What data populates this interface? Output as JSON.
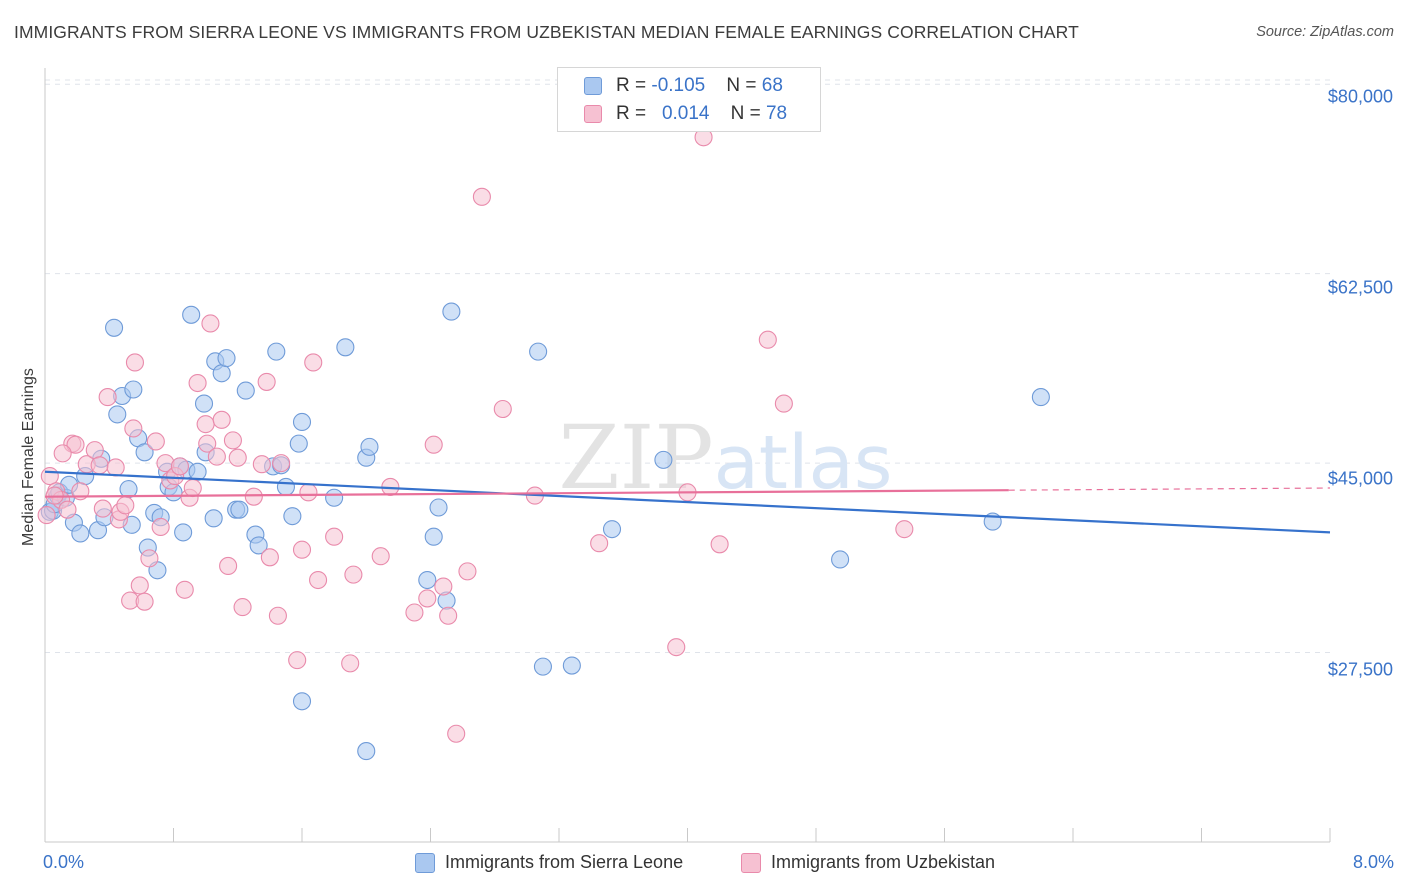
{
  "header": {
    "title": "IMMIGRANTS FROM SIERRA LEONE VS IMMIGRANTS FROM UZBEKISTAN MEDIAN FEMALE EARNINGS CORRELATION CHART",
    "source": "Source: ZipAtlas.com"
  },
  "watermark": {
    "zip": "ZIP",
    "atlas": "atlas"
  },
  "legend_top": {
    "rows": [
      {
        "r_label": "R = ",
        "r_value": "-0.105",
        "n_label": "N = ",
        "n_value": "68"
      },
      {
        "r_label": "R = ",
        "r_value": "0.014",
        "n_label": "N = ",
        "n_value": "78"
      }
    ]
  },
  "colors": {
    "blue_fill": "#aac8f0",
    "blue_stroke": "#6f9bd8",
    "blue_line": "#3672cc",
    "pink_fill": "#f6c1d2",
    "pink_stroke": "#e98aab",
    "pink_line": "#e8709a",
    "axis_text": "#3a73c8",
    "grid": "#dfe3ea"
  },
  "chart_data": {
    "type": "scatter",
    "title": "IMMIGRANTS FROM SIERRA LEONE VS IMMIGRANTS FROM UZBEKISTAN MEDIAN FEMALE EARNINGS CORRELATION CHART",
    "xlabel": "",
    "ylabel": "Median Female Earnings",
    "xlim": [
      0,
      8
    ],
    "ylim": [
      10000,
      81500
    ],
    "x_tick_labels": [
      "0.0%",
      "8.0%"
    ],
    "y_ticks": [
      27500,
      45000,
      62500,
      80000
    ],
    "y_tick_labels": [
      "$27,500",
      "$45,000",
      "$62,500",
      "$80,000"
    ],
    "grid": true,
    "legend_position": "top-center and bottom",
    "series": [
      {
        "name": "Immigrants from Sierra Leone",
        "color": "#aac8f0",
        "r": -0.105,
        "n": 68,
        "trend": {
          "x": [
            0,
            8
          ],
          "y": [
            44200,
            38600
          ]
        },
        "points": [
          [
            0.03,
            40500
          ],
          [
            0.05,
            40600
          ],
          [
            0.06,
            41200
          ],
          [
            0.08,
            42000
          ],
          [
            0.09,
            42300
          ],
          [
            0.13,
            41800
          ],
          [
            0.15,
            43000
          ],
          [
            0.18,
            39500
          ],
          [
            0.22,
            38500
          ],
          [
            0.25,
            43800
          ],
          [
            0.33,
            38800
          ],
          [
            0.35,
            45400
          ],
          [
            0.37,
            40000
          ],
          [
            0.43,
            57500
          ],
          [
            0.45,
            49500
          ],
          [
            0.48,
            51200
          ],
          [
            0.52,
            42600
          ],
          [
            0.54,
            39300
          ],
          [
            0.55,
            51800
          ],
          [
            0.58,
            47300
          ],
          [
            0.62,
            46000
          ],
          [
            0.64,
            37200
          ],
          [
            0.68,
            40400
          ],
          [
            0.7,
            35100
          ],
          [
            0.72,
            40000
          ],
          [
            0.76,
            44200
          ],
          [
            0.77,
            42800
          ],
          [
            0.8,
            42300
          ],
          [
            0.84,
            44700
          ],
          [
            0.86,
            38600
          ],
          [
            0.88,
            44400
          ],
          [
            0.91,
            58700
          ],
          [
            0.95,
            44200
          ],
          [
            0.99,
            50500
          ],
          [
            1.0,
            46000
          ],
          [
            1.05,
            39900
          ],
          [
            1.06,
            54400
          ],
          [
            1.1,
            53300
          ],
          [
            1.13,
            54700
          ],
          [
            1.19,
            40700
          ],
          [
            1.21,
            40700
          ],
          [
            1.25,
            51700
          ],
          [
            1.31,
            38400
          ],
          [
            1.33,
            37400
          ],
          [
            1.42,
            44700
          ],
          [
            1.44,
            55300
          ],
          [
            1.47,
            44800
          ],
          [
            1.5,
            42800
          ],
          [
            1.54,
            40100
          ],
          [
            1.58,
            46800
          ],
          [
            1.6,
            48800
          ],
          [
            1.8,
            41800
          ],
          [
            1.87,
            55700
          ],
          [
            2.0,
            45500
          ],
          [
            2.02,
            46500
          ],
          [
            2.38,
            34200
          ],
          [
            2.42,
            38200
          ],
          [
            2.45,
            40900
          ],
          [
            2.5,
            32300
          ],
          [
            2.53,
            59000
          ],
          [
            3.1,
            26200
          ],
          [
            3.28,
            26300
          ],
          [
            3.07,
            55300
          ],
          [
            3.53,
            38900
          ],
          [
            3.85,
            45300
          ],
          [
            4.95,
            36100
          ],
          [
            5.9,
            39600
          ],
          [
            6.2,
            51100
          ],
          [
            1.6,
            23000
          ],
          [
            2.0,
            18400
          ]
        ]
      },
      {
        "name": "Immigrants from Uzbekistan",
        "color": "#f6c1d2",
        "r": 0.014,
        "n": 78,
        "trend": {
          "x": [
            0,
            6
          ],
          "y": [
            41900,
            42500
          ]
        },
        "points": [
          [
            0.03,
            43800
          ],
          [
            0.07,
            42400
          ],
          [
            0.1,
            41600
          ],
          [
            0.14,
            40700
          ],
          [
            0.17,
            46800
          ],
          [
            0.19,
            46700
          ],
          [
            0.22,
            42400
          ],
          [
            0.26,
            44900
          ],
          [
            0.31,
            46200
          ],
          [
            0.34,
            44800
          ],
          [
            0.36,
            40800
          ],
          [
            0.39,
            51100
          ],
          [
            0.44,
            44600
          ],
          [
            0.46,
            39800
          ],
          [
            0.47,
            40500
          ],
          [
            0.5,
            41100
          ],
          [
            0.53,
            32300
          ],
          [
            0.55,
            48200
          ],
          [
            0.56,
            54300
          ],
          [
            0.59,
            33700
          ],
          [
            0.62,
            32200
          ],
          [
            0.65,
            36200
          ],
          [
            0.69,
            47000
          ],
          [
            0.72,
            39100
          ],
          [
            0.75,
            45000
          ],
          [
            0.78,
            43400
          ],
          [
            0.81,
            43800
          ],
          [
            0.84,
            44700
          ],
          [
            0.87,
            33300
          ],
          [
            0.9,
            41800
          ],
          [
            0.92,
            42700
          ],
          [
            0.95,
            52400
          ],
          [
            1.0,
            48600
          ],
          [
            1.01,
            46800
          ],
          [
            1.03,
            57900
          ],
          [
            1.07,
            45600
          ],
          [
            1.1,
            49000
          ],
          [
            1.14,
            35500
          ],
          [
            1.17,
            47100
          ],
          [
            1.2,
            45500
          ],
          [
            1.23,
            31700
          ],
          [
            1.3,
            41900
          ],
          [
            1.35,
            44900
          ],
          [
            1.38,
            52500
          ],
          [
            1.4,
            36300
          ],
          [
            1.45,
            30900
          ],
          [
            1.47,
            45000
          ],
          [
            1.57,
            26800
          ],
          [
            1.6,
            37000
          ],
          [
            1.64,
            42300
          ],
          [
            1.67,
            54300
          ],
          [
            1.7,
            34200
          ],
          [
            1.8,
            38200
          ],
          [
            1.9,
            26500
          ],
          [
            1.92,
            34700
          ],
          [
            2.09,
            36400
          ],
          [
            2.15,
            42800
          ],
          [
            2.3,
            31200
          ],
          [
            2.38,
            32500
          ],
          [
            2.42,
            46700
          ],
          [
            2.48,
            33600
          ],
          [
            2.51,
            30900
          ],
          [
            2.56,
            20000
          ],
          [
            2.63,
            35000
          ],
          [
            2.72,
            69600
          ],
          [
            2.85,
            50000
          ],
          [
            3.05,
            42000
          ],
          [
            3.45,
            37600
          ],
          [
            3.93,
            28000
          ],
          [
            4.0,
            42300
          ],
          [
            4.1,
            75100
          ],
          [
            4.2,
            37500
          ],
          [
            4.5,
            56400
          ],
          [
            4.6,
            50500
          ],
          [
            5.35,
            38900
          ],
          [
            0.01,
            40200
          ],
          [
            0.06,
            42000
          ],
          [
            0.11,
            45900
          ]
        ]
      }
    ]
  },
  "legend_bottom": {
    "items": [
      {
        "label": "Immigrants from Sierra Leone"
      },
      {
        "label": "Immigrants from Uzbekistan"
      }
    ]
  }
}
